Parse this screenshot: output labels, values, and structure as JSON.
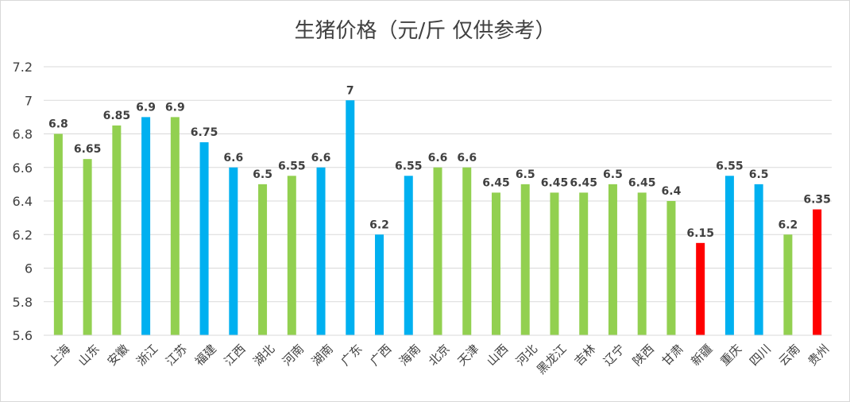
{
  "chart_data": {
    "type": "bar",
    "title": "生猪价格（元/斤 仅供参考）",
    "categories": [
      "上海",
      "山东",
      "安徽",
      "浙江",
      "江苏",
      "福建",
      "江西",
      "湖北",
      "河南",
      "湖南",
      "广东",
      "广西",
      "海南",
      "北京",
      "天津",
      "山西",
      "河北",
      "黑龙江",
      "吉林",
      "辽宁",
      "陕西",
      "甘肃",
      "新疆",
      "重庆",
      "四川",
      "云南",
      "贵州"
    ],
    "values": [
      6.8,
      6.65,
      6.85,
      6.9,
      6.9,
      6.75,
      6.6,
      6.5,
      6.55,
      6.6,
      7,
      6.2,
      6.55,
      6.6,
      6.6,
      6.45,
      6.5,
      6.45,
      6.45,
      6.5,
      6.45,
      6.4,
      6.15,
      6.55,
      6.5,
      6.2,
      6.35
    ],
    "bar_colors": [
      "#92d050",
      "#92d050",
      "#92d050",
      "#00b0f0",
      "#92d050",
      "#00b0f0",
      "#00b0f0",
      "#92d050",
      "#92d050",
      "#00b0f0",
      "#00b0f0",
      "#00b0f0",
      "#00b0f0",
      "#92d050",
      "#92d050",
      "#92d050",
      "#92d050",
      "#92d050",
      "#92d050",
      "#92d050",
      "#92d050",
      "#92d050",
      "#ff0000",
      "#00b0f0",
      "#00b0f0",
      "#92d050",
      "#ff0000"
    ],
    "data_labels": [
      "6.8",
      "6.65",
      "6.85",
      "6.9",
      "6.9",
      "6.75",
      "6.6",
      "6.5",
      "6.55",
      "6.6",
      "7",
      "6.2",
      "6.55",
      "6.6",
      "6.6",
      "6.45",
      "6.5",
      "6.45",
      "6.45",
      "6.5",
      "6.45",
      "6.4",
      "6.15",
      "6.55",
      "6.5",
      "6.2",
      "6.35"
    ],
    "ylim": [
      5.6,
      7.2
    ],
    "yticks": [
      5.6,
      5.8,
      6,
      6.2,
      6.4,
      6.6,
      6.8,
      7,
      7.2
    ],
    "ytick_labels": [
      "5.6",
      "5.8",
      "6",
      "6.2",
      "6.4",
      "6.6",
      "6.8",
      "7",
      "7.2"
    ],
    "xlabel": "",
    "ylabel": "",
    "grid": true,
    "legend": "none"
  }
}
